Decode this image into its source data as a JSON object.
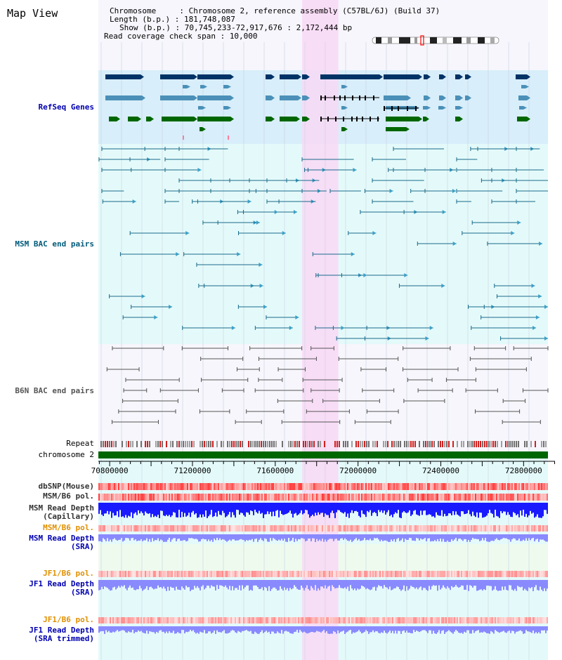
{
  "title": "Map View",
  "info": {
    "chromosome_key": "Chromosome     : ",
    "chromosome": "Chromosome 2, reference assembly (C57BL/6J) (Build 37)",
    "length_key": "Length (b.p.) : ",
    "length": "181,748,087",
    "show_key": "Show (b.p.) : ",
    "show": "70,745,233-72,917,676 : 2,172,444 bp",
    "coverage_key": "Read coverage check span : ",
    "coverage": "10,000"
  },
  "tracks": {
    "refseq": "RefSeq Genes",
    "msm_bac": "MSM BAC end pairs",
    "b6n_bac": "B6N BAC end pairs",
    "repeat": "Repeat",
    "chromosome": "chromosome 2",
    "dbsnp": "dbSNP(Mouse)",
    "msm_b6_pol_1": "MSM/B6 pol.",
    "msm_read_cap_1": "MSM Read Depth",
    "msm_read_cap_2": "(Capillary)",
    "msm_b6_pol_2": "MSM/B6 pol.",
    "msm_read_sra_1": "MSM Read Depth",
    "msm_read_sra_2": "(SRA)",
    "jf1_b6_pol_1": "JF1/B6 pol.",
    "jf1_read_sra_1": "JF1 Read Depth",
    "jf1_read_sra_2": "(SRA)",
    "jf1_b6_pol_2": "JF1/B6 pol.",
    "jf1_read_trim_1": "JF1 Read Depth",
    "jf1_read_trim_2": "(SRA trimmed)"
  },
  "axis": {
    "ticks": [
      "70800000",
      "71200000",
      "71600000",
      "72000000",
      "72400000",
      "72800000"
    ],
    "tick_values": [
      70800000,
      71200000,
      71600000,
      72000000,
      72400000,
      72800000
    ],
    "range": [
      70745233,
      72917676
    ],
    "highlight_range": [
      71730000,
      71905000
    ]
  },
  "colors": {
    "refseq_bg": "#d8eefa",
    "msm_bg": "#e4fafa",
    "b6n_bg": "#f6f6fc",
    "highlight": "#f8d8f4",
    "gene_dark": "#003366",
    "gene_mid": "#4a90b8",
    "gene_green": "#006600",
    "msm_line": "#1a6a8a",
    "b6n_line": "#555555",
    "chromosome_bar": "#006600",
    "depth_blue": "#1a1aff",
    "depth_light": "#8a8aff"
  }
}
